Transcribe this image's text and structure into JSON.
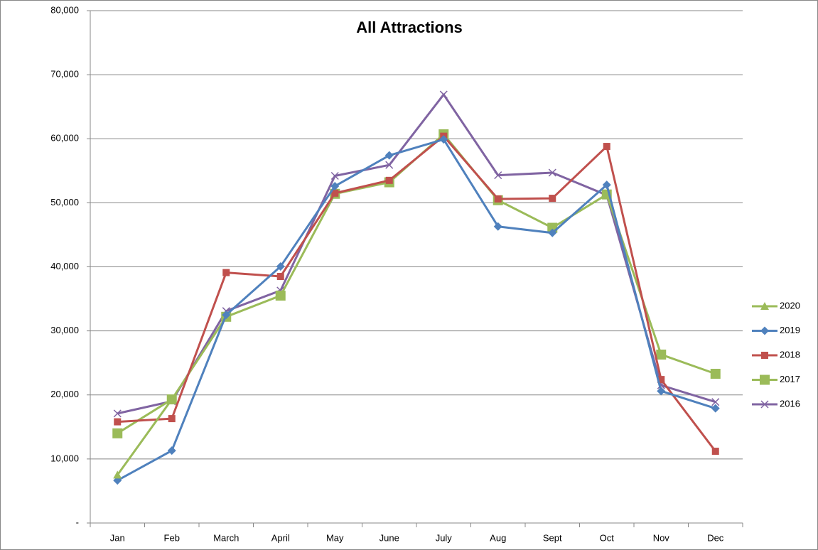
{
  "chart_data": {
    "type": "line",
    "title": "All Attractions",
    "categories": [
      "Jan",
      "Feb",
      "March",
      "April",
      "May",
      "June",
      "July",
      "Aug",
      "Sept",
      "Oct",
      "Nov",
      "Dec"
    ],
    "ylim": [
      0,
      80000
    ],
    "yticks": [
      {
        "value": 0,
        "label": "-"
      },
      {
        "value": 10000,
        "label": "10,000"
      },
      {
        "value": 20000,
        "label": "20,000"
      },
      {
        "value": 30000,
        "label": "30,000"
      },
      {
        "value": 40000,
        "label": "40,000"
      },
      {
        "value": 50000,
        "label": "50,000"
      },
      {
        "value": 60000,
        "label": "60,000"
      },
      {
        "value": 70000,
        "label": "70,000"
      },
      {
        "value": 80000,
        "label": "80,000"
      }
    ],
    "grid": true,
    "legend": "right",
    "series": [
      {
        "name": "2020",
        "color": "#9bbb59",
        "marker": "triangle",
        "values": [
          7500,
          19300,
          null,
          null,
          null,
          null,
          null,
          null,
          null,
          null,
          null,
          null
        ]
      },
      {
        "name": "2019",
        "color": "#4f81bd",
        "marker": "diamond",
        "values": [
          6650,
          11300,
          32500,
          40050,
          52600,
          57400,
          59900,
          46300,
          45300,
          52800,
          20600,
          17900
        ]
      },
      {
        "name": "2018",
        "color": "#c0504d",
        "marker": "square",
        "values": [
          15800,
          16300,
          39100,
          38500,
          51500,
          53500,
          60400,
          50600,
          50700,
          58800,
          22400,
          11200
        ]
      },
      {
        "name": "2017",
        "color": "#9bbb59",
        "marker": "bigsquare",
        "values": [
          14000,
          19300,
          32200,
          35500,
          51400,
          53200,
          60700,
          50400,
          46100,
          51300,
          26300,
          23300
        ]
      },
      {
        "name": "2016",
        "color": "#8064a2",
        "marker": "x",
        "values": [
          17100,
          19000,
          33100,
          36300,
          54200,
          55900,
          66900,
          54300,
          54700,
          51200,
          21500,
          18900
        ]
      }
    ]
  }
}
